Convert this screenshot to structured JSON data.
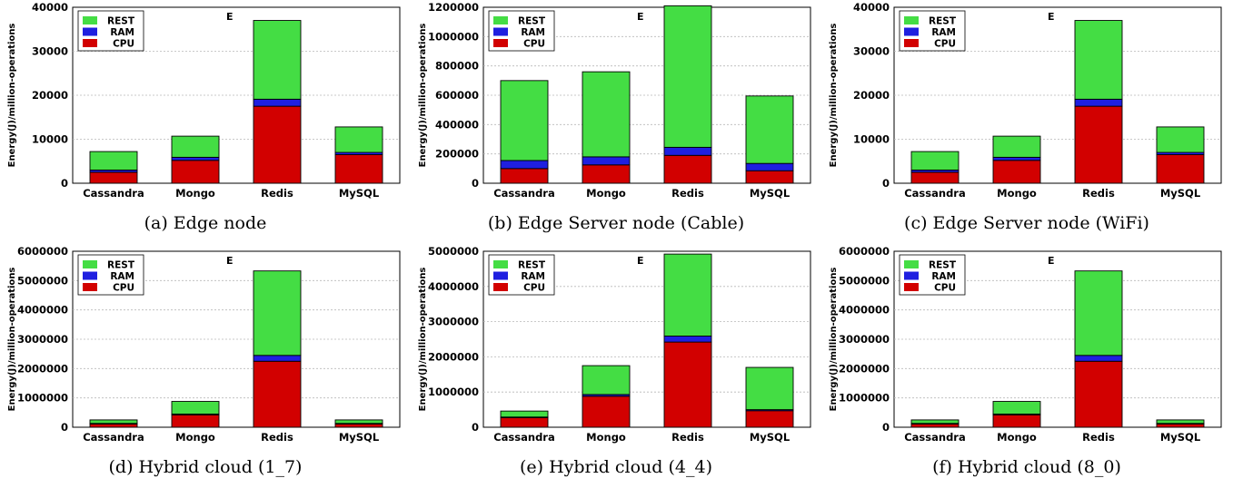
{
  "colors": {
    "rest": "#44dd44",
    "ram": "#1f1fe0",
    "cpu": "#d20000",
    "frame": "#000000",
    "grid": "#b8b8b8"
  },
  "panels": [
    {
      "caption": "(a) Edge node",
      "chart_data": {
        "type": "bar",
        "stacked": true,
        "annotation": "E",
        "ylabel": "Energy(J)/million-operations",
        "ylim": [
          0,
          40000
        ],
        "yticks": [
          0,
          10000,
          20000,
          30000,
          40000
        ],
        "grid": true,
        "legend_position": "top-left",
        "categories": [
          "Cassandra",
          "Mongo",
          "Redis",
          "MySQL"
        ],
        "series": [
          {
            "name": "CPU",
            "color_key": "cpu",
            "values": [
              2500,
              5200,
              17500,
              6500
            ]
          },
          {
            "name": "RAM",
            "color_key": "ram",
            "values": [
              500,
              700,
              1600,
              500
            ]
          },
          {
            "name": "REST",
            "color_key": "rest",
            "values": [
              4200,
              4800,
              17900,
              5800
            ]
          }
        ],
        "legend_order": [
          "REST",
          "RAM",
          "CPU"
        ]
      }
    },
    {
      "caption": "(b) Edge Server node (Cable)",
      "chart_data": {
        "type": "bar",
        "stacked": true,
        "annotation": "E",
        "ylabel": "Energy(J)/million-operations",
        "ylim": [
          0,
          1200000
        ],
        "yticks": [
          0,
          200000,
          400000,
          600000,
          800000,
          1000000,
          1200000
        ],
        "grid": true,
        "legend_position": "top-left",
        "categories": [
          "Cassandra",
          "Mongo",
          "Redis",
          "MySQL"
        ],
        "series": [
          {
            "name": "CPU",
            "color_key": "cpu",
            "values": [
              100000,
              125000,
              190000,
              85000
            ]
          },
          {
            "name": "RAM",
            "color_key": "ram",
            "values": [
              55000,
              55000,
              55000,
              50000
            ]
          },
          {
            "name": "REST",
            "color_key": "rest",
            "values": [
              545000,
              580000,
              965000,
              460000
            ]
          }
        ],
        "legend_order": [
          "REST",
          "RAM",
          "CPU"
        ]
      }
    },
    {
      "caption": "(c) Edge Server node (WiFi)",
      "chart_data": {
        "type": "bar",
        "stacked": true,
        "annotation": "E",
        "ylabel": "Energy(J)/million-operations",
        "ylim": [
          0,
          40000
        ],
        "yticks": [
          0,
          10000,
          20000,
          30000,
          40000
        ],
        "grid": true,
        "legend_position": "top-left",
        "categories": [
          "Cassandra",
          "Mongo",
          "Redis",
          "MySQL"
        ],
        "series": [
          {
            "name": "CPU",
            "color_key": "cpu",
            "values": [
              2500,
              5200,
              17500,
              6500
            ]
          },
          {
            "name": "RAM",
            "color_key": "ram",
            "values": [
              500,
              700,
              1600,
              500
            ]
          },
          {
            "name": "REST",
            "color_key": "rest",
            "values": [
              4200,
              4800,
              17900,
              5800
            ]
          }
        ],
        "legend_order": [
          "REST",
          "RAM",
          "CPU"
        ]
      }
    },
    {
      "caption": "(d) Hybrid cloud (1_7)",
      "chart_data": {
        "type": "bar",
        "stacked": true,
        "annotation": "E",
        "ylabel": "Energy(J)/million-operations",
        "ylim": [
          0,
          6000000
        ],
        "yticks": [
          0,
          1000000,
          2000000,
          3000000,
          4000000,
          5000000,
          6000000
        ],
        "grid": true,
        "legend_position": "top-left",
        "categories": [
          "Cassandra",
          "Mongo",
          "Redis",
          "MySQL"
        ],
        "series": [
          {
            "name": "CPU",
            "color_key": "cpu",
            "values": [
              110000,
              420000,
              2250000,
              110000
            ]
          },
          {
            "name": "RAM",
            "color_key": "ram",
            "values": [
              20000,
              30000,
              200000,
              20000
            ]
          },
          {
            "name": "REST",
            "color_key": "rest",
            "values": [
              120000,
              430000,
              2880000,
              120000
            ]
          }
        ],
        "legend_order": [
          "REST",
          "RAM",
          "CPU"
        ]
      }
    },
    {
      "caption": "(e) Hybrid cloud (4_4)",
      "chart_data": {
        "type": "bar",
        "stacked": true,
        "annotation": "E",
        "ylabel": "Energy(J)/million-operations",
        "ylim": [
          0,
          5000000
        ],
        "yticks": [
          0,
          1000000,
          2000000,
          3000000,
          4000000,
          5000000
        ],
        "grid": true,
        "legend_position": "top-left",
        "categories": [
          "Cassandra",
          "Mongo",
          "Redis",
          "MySQL"
        ],
        "series": [
          {
            "name": "CPU",
            "color_key": "cpu",
            "values": [
              270000,
              880000,
              2420000,
              470000
            ]
          },
          {
            "name": "RAM",
            "color_key": "ram",
            "values": [
              20000,
              50000,
              170000,
              30000
            ]
          },
          {
            "name": "REST",
            "color_key": "rest",
            "values": [
              170000,
              820000,
              2330000,
              1200000
            ]
          }
        ],
        "legend_order": [
          "REST",
          "RAM",
          "CPU"
        ]
      }
    },
    {
      "caption": "(f) Hybrid cloud (8_0)",
      "chart_data": {
        "type": "bar",
        "stacked": true,
        "annotation": "E",
        "ylabel": "Energy(J)/million-operations",
        "ylim": [
          0,
          6000000
        ],
        "yticks": [
          0,
          1000000,
          2000000,
          3000000,
          4000000,
          5000000,
          6000000
        ],
        "grid": true,
        "legend_position": "top-left",
        "categories": [
          "Cassandra",
          "Mongo",
          "Redis",
          "MySQL"
        ],
        "series": [
          {
            "name": "CPU",
            "color_key": "cpu",
            "values": [
              110000,
              420000,
              2250000,
              110000
            ]
          },
          {
            "name": "RAM",
            "color_key": "ram",
            "values": [
              20000,
              30000,
              200000,
              20000
            ]
          },
          {
            "name": "REST",
            "color_key": "rest",
            "values": [
              120000,
              430000,
              2880000,
              120000
            ]
          }
        ],
        "legend_order": [
          "REST",
          "RAM",
          "CPU"
        ]
      }
    }
  ]
}
